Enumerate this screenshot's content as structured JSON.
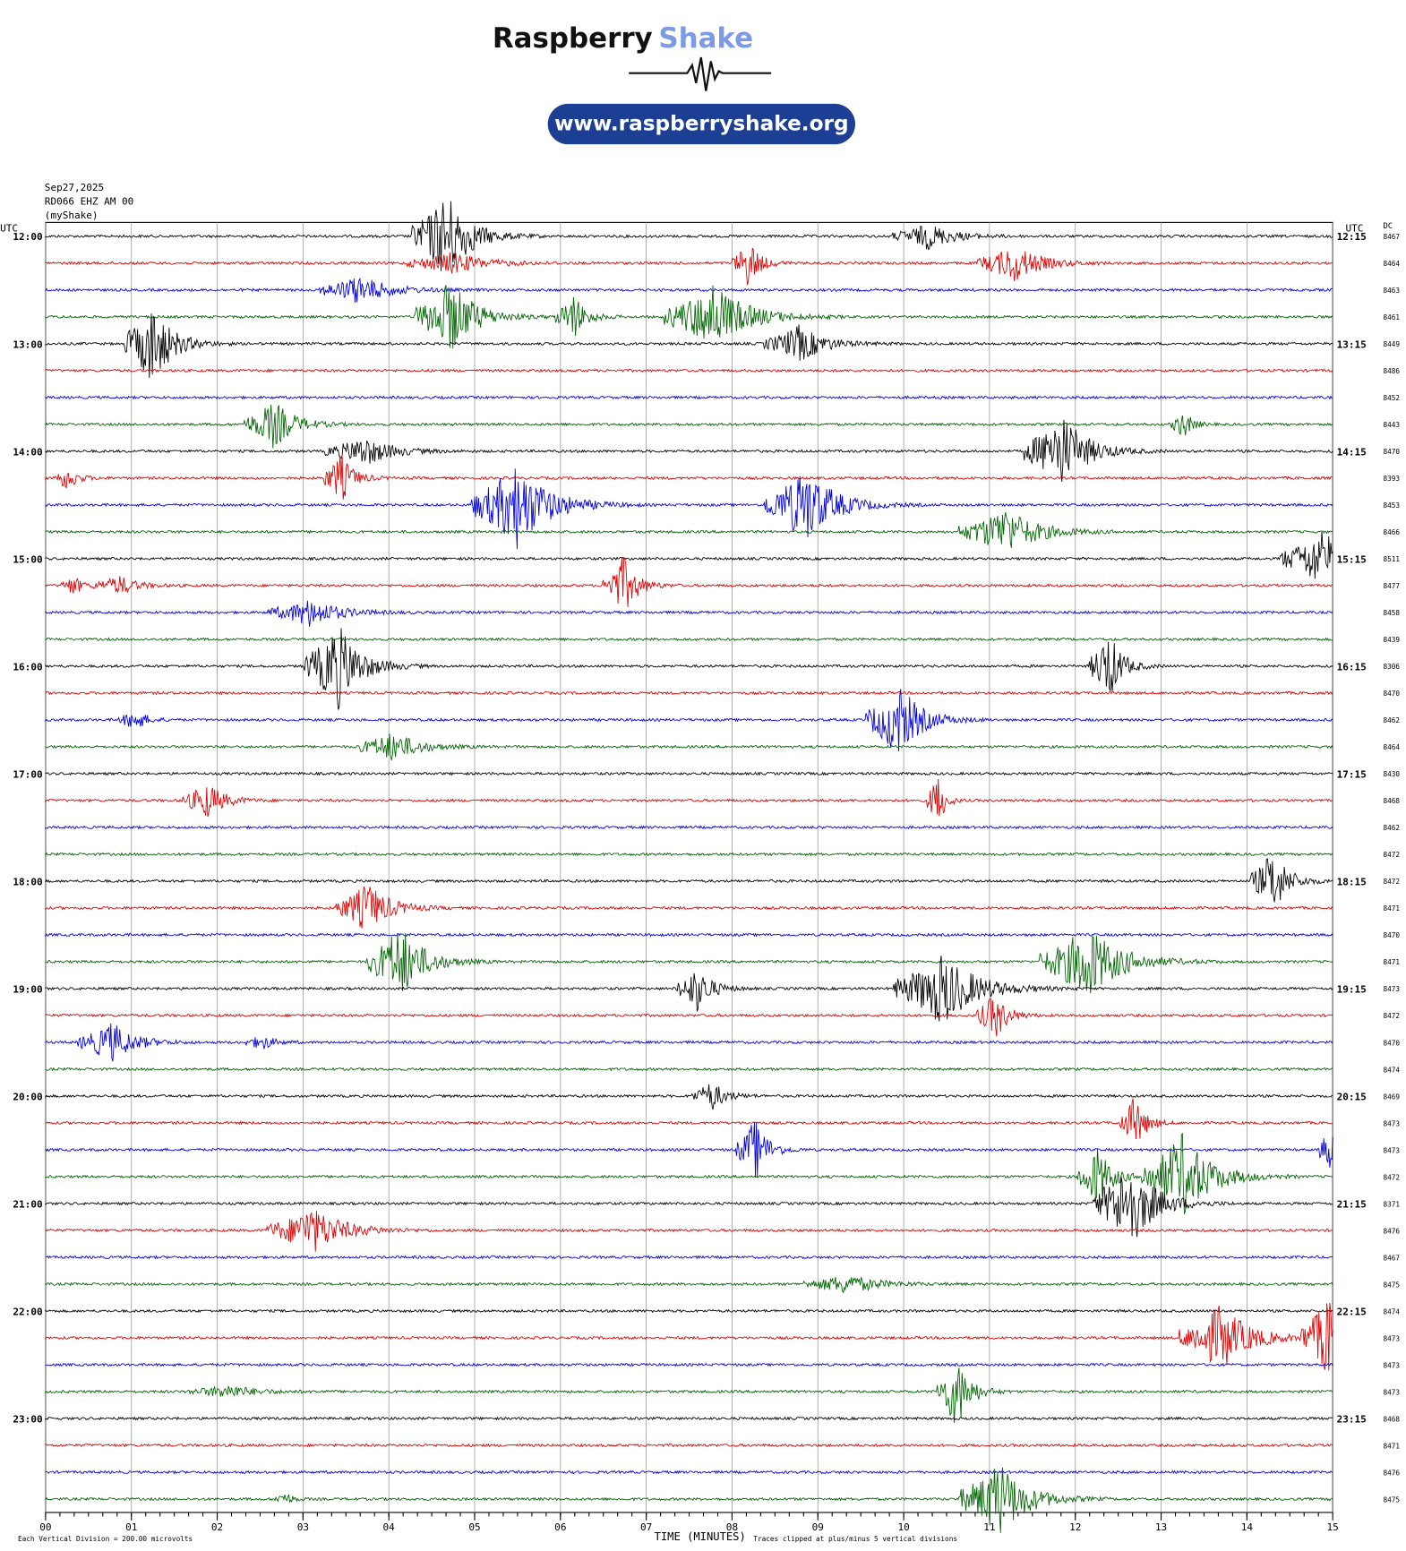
{
  "header": {
    "brand": "Raspberry",
    "brand_accent": "Shake",
    "url": "www.raspberryshake.org"
  },
  "info": {
    "date": "Sep27,2025",
    "station": "RD066 EHZ AM 00",
    "source": "(myShake)"
  },
  "axes": {
    "left_unit": "UTC",
    "right_unit": "UTC",
    "dc_label": "DC",
    "left_labels": [
      "12:00",
      "13:00",
      "14:00",
      "15:00",
      "16:00",
      "17:00",
      "18:00",
      "19:00",
      "20:00",
      "21:00",
      "22:00",
      "23:00"
    ],
    "right_labels": [
      "12:15",
      "13:15",
      "14:15",
      "15:15",
      "16:15",
      "17:15",
      "18:15",
      "19:15",
      "20:15",
      "21:15",
      "22:15",
      "23:15"
    ],
    "xlim": [
      0,
      15
    ],
    "xticks": [
      {
        "value": 0,
        "label": "00"
      },
      {
        "value": 1,
        "label": "01"
      },
      {
        "value": 2,
        "label": "02"
      },
      {
        "value": 3,
        "label": "03"
      },
      {
        "value": 4,
        "label": "04"
      },
      {
        "value": 5,
        "label": "05"
      },
      {
        "value": 6,
        "label": "06"
      },
      {
        "value": 7,
        "label": "07"
      },
      {
        "value": 8,
        "label": "08"
      },
      {
        "value": 9,
        "label": "09"
      },
      10,
      11,
      12,
      13,
      14,
      15
    ],
    "xlabel": "TIME (MINUTES)",
    "scale_note": "Each Vertical Division =  200.00 microvolts",
    "clip_note": "Traces clipped at plus/minus 5 vertical divisions"
  },
  "traces": {
    "colors": [
      "#000000",
      "#e00000",
      "#0000e0",
      "#006400"
    ],
    "dc": [
      8467,
      8464,
      8463,
      8461,
      8449,
      8486,
      8452,
      8443,
      8470,
      8393,
      8453,
      8466,
      8511,
      8477,
      8458,
      8439,
      8306,
      8470,
      8462,
      8464,
      8430,
      8468,
      8462,
      8472,
      8472,
      8471,
      8470,
      8471,
      8473,
      8472,
      8470,
      8474,
      8469,
      8473,
      8473,
      8472,
      8371,
      8476,
      8467,
      8475,
      8474,
      8473,
      8473,
      8473,
      8468,
      8471,
      8476,
      8475
    ]
  }
}
